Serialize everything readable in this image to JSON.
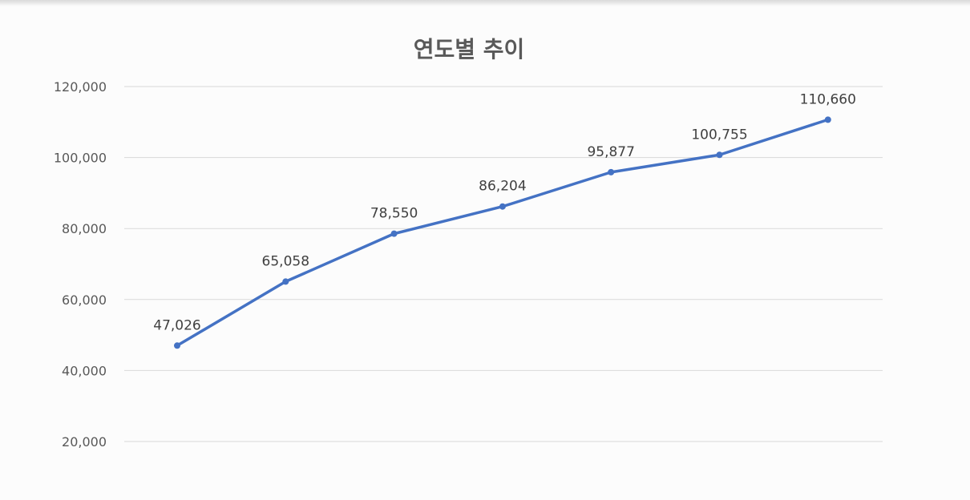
{
  "chart_data": {
    "type": "line",
    "title": "연도별 추이",
    "xlabel": "",
    "ylabel": "",
    "ylim": [
      20000,
      120000
    ],
    "y_ticks": [
      20000,
      40000,
      60000,
      80000,
      100000,
      120000
    ],
    "y_tick_labels": [
      "20,000",
      "40,000",
      "60,000",
      "80,000",
      "100,000",
      "120,000"
    ],
    "grid": true,
    "legend": "none",
    "series": [
      {
        "color": "#4472c4",
        "values": [
          47026,
          65058,
          78550,
          86204,
          95877,
          100755,
          110660
        ],
        "labels": [
          "47,026",
          "65,058",
          "78,550",
          "86,204",
          "95,877",
          "100,755",
          "110,660"
        ]
      }
    ]
  }
}
